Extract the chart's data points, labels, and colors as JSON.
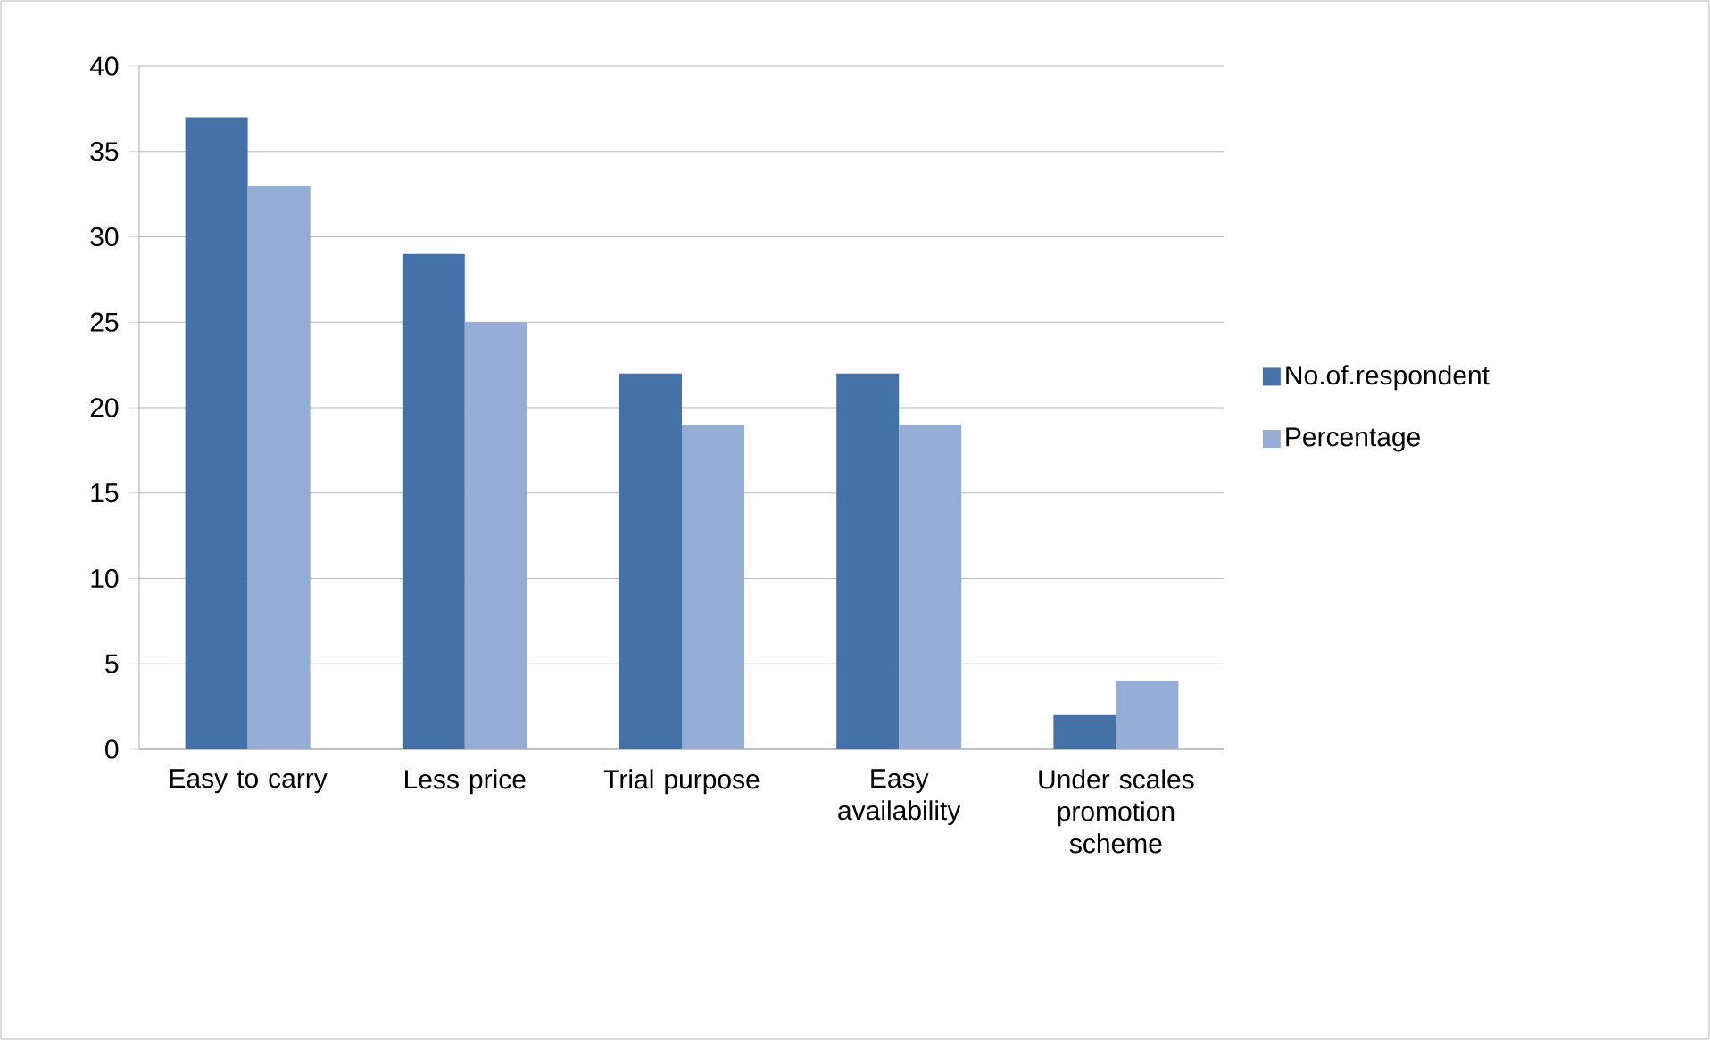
{
  "chart_data": {
    "type": "bar",
    "categories": [
      "Easy to carry",
      "Less price",
      "Trial purpose",
      "Easy availability",
      "Under scales promotion scheme"
    ],
    "series": [
      {
        "name": "No.of.respondent",
        "color": "#4472a8",
        "values": [
          37,
          29,
          22,
          22,
          2
        ]
      },
      {
        "name": "Percentage",
        "color": "#95acd4",
        "values": [
          33,
          25,
          19,
          19,
          4
        ]
      }
    ],
    "ylim": [
      0,
      40
    ],
    "yticks": [
      0,
      5,
      10,
      15,
      20,
      25,
      30,
      35,
      40
    ],
    "grid": "y",
    "legend": "right"
  }
}
